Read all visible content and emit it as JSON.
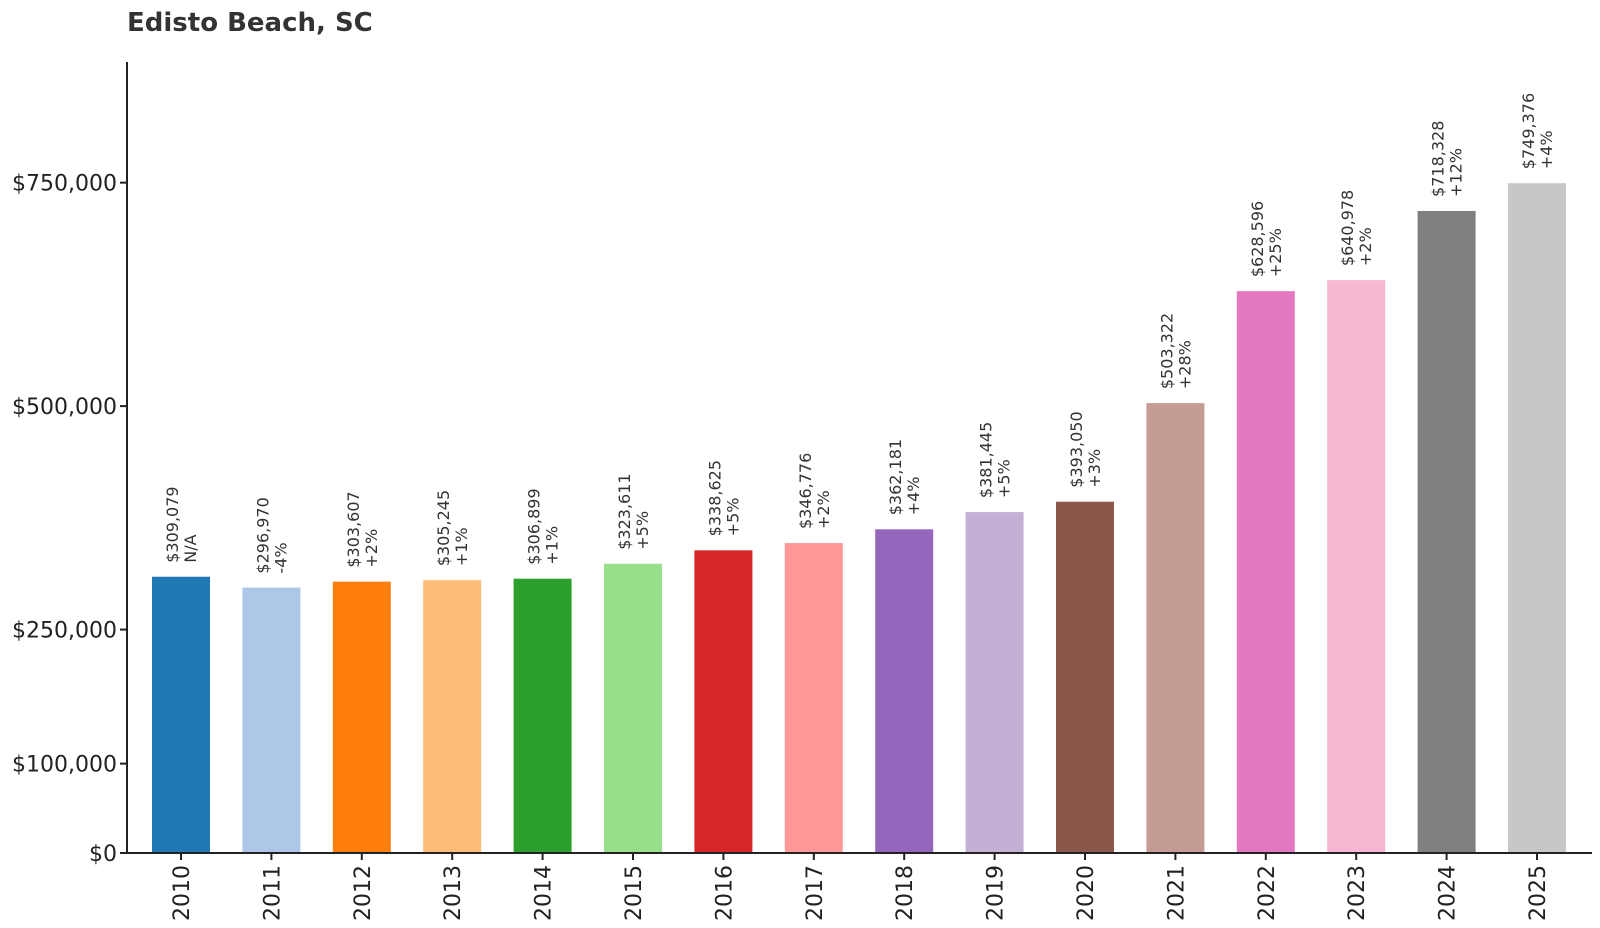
{
  "chart_data": {
    "type": "bar",
    "title": "Edisto Beach, SC",
    "xlabel": "",
    "ylabel": "",
    "categories": [
      "2010",
      "2011",
      "2012",
      "2013",
      "2014",
      "2015",
      "2016",
      "2017",
      "2018",
      "2019",
      "2020",
      "2021",
      "2022",
      "2023",
      "2024",
      "2025"
    ],
    "values": [
      309079,
      296970,
      303607,
      305245,
      306899,
      323611,
      338625,
      346776,
      362181,
      381445,
      393050,
      503322,
      628596,
      640978,
      718328,
      749376
    ],
    "value_labels": [
      "$309,079",
      "$296,970",
      "$303,607",
      "$305,245",
      "$306,899",
      "$323,611",
      "$338,625",
      "$346,776",
      "$362,181",
      "$381,445",
      "$393,050",
      "$503,322",
      "$628,596",
      "$640,978",
      "$718,328",
      "$749,376"
    ],
    "change_labels": [
      "N/A",
      "-4%",
      "+2%",
      "+1%",
      "+1%",
      "+5%",
      "+5%",
      "+2%",
      "+4%",
      "+5%",
      "+3%",
      "+28%",
      "+25%",
      "+2%",
      "+12%",
      "+4%"
    ],
    "colors": [
      "#1f77b4",
      "#aec7e8",
      "#ff7f0e",
      "#ffbb78",
      "#2ca02c",
      "#98df8a",
      "#d62728",
      "#ff9896",
      "#9467bd",
      "#c5b0d5",
      "#8c564b",
      "#c49c94",
      "#e377c2",
      "#f7b6d2",
      "#7f7f7f",
      "#c7c7c7"
    ],
    "yticks": [
      0,
      100000,
      250000,
      500000,
      750000
    ],
    "ytick_labels": [
      "$0",
      "$100,000",
      "$250,000",
      "$500,000",
      "$750,000"
    ],
    "ylim": [
      0,
      885000
    ],
    "grid": false,
    "legend": "none"
  }
}
